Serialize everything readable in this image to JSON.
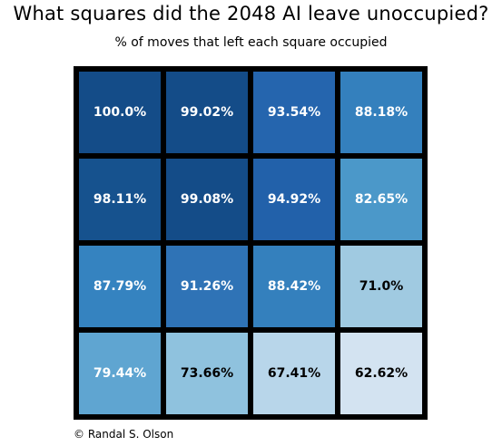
{
  "title": "What squares did the 2048 AI leave unoccupied?",
  "subtitle": "% of moves that left each square occupied",
  "credit": "© Randal S. Olson",
  "chart_data": {
    "type": "heatmap",
    "title": "What squares did the 2048 AI leave unoccupied?",
    "subtitle": "% of moves that left each square occupied",
    "rows": 4,
    "cols": 4,
    "values": [
      [
        100.0,
        99.02,
        93.54,
        88.18
      ],
      [
        98.11,
        99.08,
        94.92,
        82.65
      ],
      [
        87.79,
        91.26,
        88.42,
        71.0
      ],
      [
        79.44,
        73.66,
        67.41,
        62.62
      ]
    ],
    "labels": [
      [
        "100.0%",
        "99.02%",
        "93.54%",
        "88.18%"
      ],
      [
        "98.11%",
        "99.08%",
        "94.92%",
        "82.65%"
      ],
      [
        "87.79%",
        "91.26%",
        "88.42%",
        "71.0%"
      ],
      [
        "79.44%",
        "73.66%",
        "67.41%",
        "62.62%"
      ]
    ],
    "colors": [
      [
        "#144c88",
        "#144c88",
        "#2565ae",
        "#3480bd"
      ],
      [
        "#16528e",
        "#144c88",
        "#2261aa",
        "#4b98c9"
      ],
      [
        "#3583c0",
        "#2f73b6",
        "#3480bd",
        "#a0cae1"
      ],
      [
        "#5fa5d1",
        "#8fc2de",
        "#b8d6ea",
        "#d3e3f1"
      ]
    ],
    "text_colors": [
      [
        "#ffffff",
        "#ffffff",
        "#ffffff",
        "#ffffff"
      ],
      [
        "#ffffff",
        "#ffffff",
        "#ffffff",
        "#ffffff"
      ],
      [
        "#ffffff",
        "#ffffff",
        "#ffffff",
        "#000000"
      ],
      [
        "#ffffff",
        "#000000",
        "#000000",
        "#000000"
      ]
    ],
    "colormap": "Blues",
    "border_color": "#000000",
    "grid": true,
    "legend": "none"
  }
}
